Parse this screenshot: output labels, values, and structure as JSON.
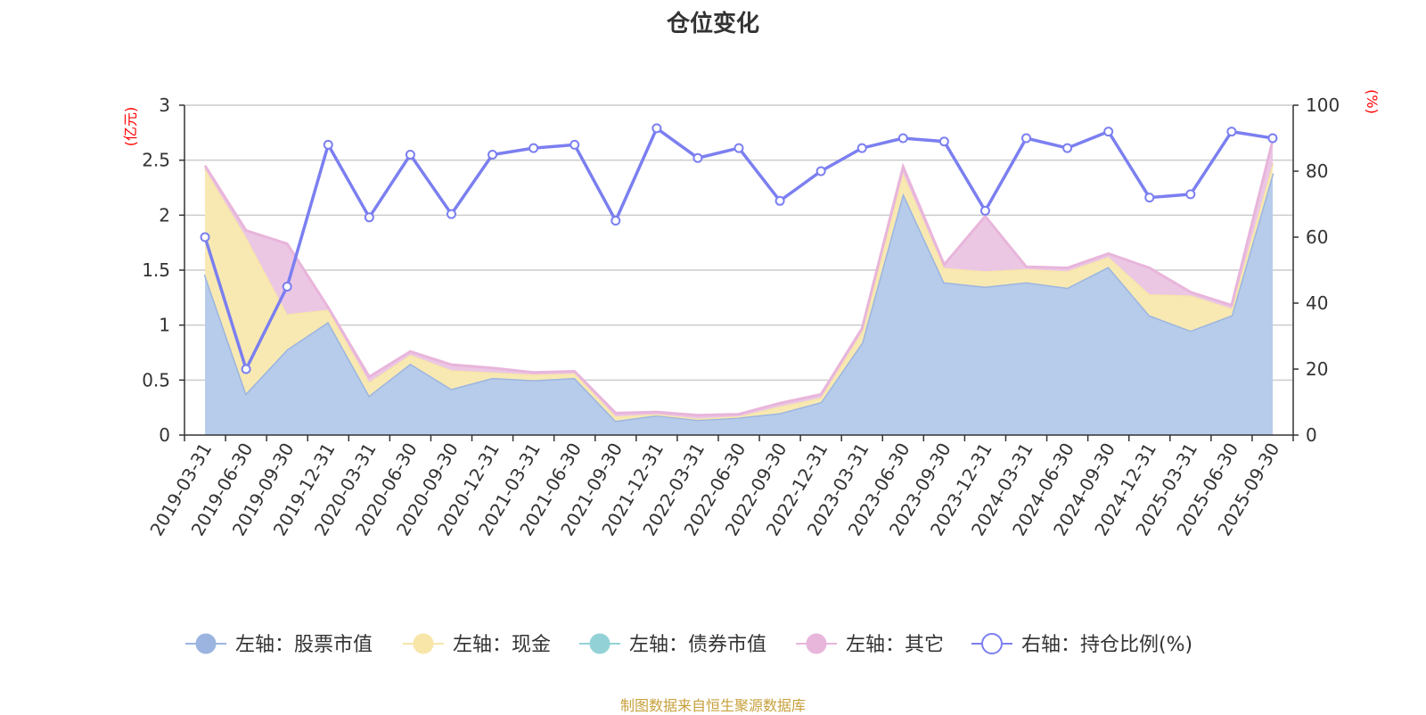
{
  "title": "仓位变化",
  "source_note": "制图数据来自恒生聚源数据库",
  "chart_data": {
    "type": "area",
    "title": "仓位变化",
    "categories": [
      "2019-03-31",
      "2019-06-30",
      "2019-09-30",
      "2019-12-31",
      "2020-03-31",
      "2020-06-30",
      "2020-09-30",
      "2020-12-31",
      "2021-03-31",
      "2021-06-30",
      "2021-09-30",
      "2021-12-31",
      "2022-03-31",
      "2022-06-30",
      "2022-09-30",
      "2022-12-31",
      "2023-03-31",
      "2023-06-30",
      "2023-09-30",
      "2023-12-31",
      "2024-03-31",
      "2024-06-30",
      "2024-09-30",
      "2024-12-31",
      "2025-03-31",
      "2025-06-30",
      "2025-09-30"
    ],
    "left_axis": {
      "unit": "(亿元)",
      "ylim": [
        0,
        3
      ],
      "ticks": [
        "0",
        "0.5",
        "1",
        "1.5",
        "2",
        "2.5",
        "3"
      ]
    },
    "right_axis": {
      "unit": "(%)",
      "ylim": [
        0,
        100
      ],
      "ticks": [
        "0",
        "20",
        "40",
        "60",
        "80",
        "100"
      ]
    },
    "grid": true,
    "legend_position": "bottom",
    "series": [
      {
        "name": "左轴：股票市值",
        "axis": "left",
        "stack": true,
        "color": "#9bb5e0",
        "fill": "#b7cbea",
        "values": [
          1.46,
          0.38,
          0.78,
          1.03,
          0.36,
          0.65,
          0.42,
          0.52,
          0.5,
          0.52,
          0.13,
          0.18,
          0.14,
          0.16,
          0.2,
          0.3,
          0.84,
          2.2,
          1.39,
          1.35,
          1.39,
          1.34,
          1.53,
          1.09,
          0.95,
          1.09,
          2.38
        ]
      },
      {
        "name": "左轴：现金",
        "axis": "left",
        "stack": true,
        "color": "#f7e6a8",
        "fill": "#f8e9b3",
        "values": [
          0.96,
          1.42,
          0.32,
          0.11,
          0.12,
          0.08,
          0.17,
          0.05,
          0.05,
          0.04,
          0.04,
          0.01,
          0.01,
          0.01,
          0.06,
          0.04,
          0.1,
          0.18,
          0.13,
          0.14,
          0.12,
          0.15,
          0.09,
          0.19,
          0.32,
          0.06,
          0.09
        ]
      },
      {
        "name": "左轴：债券市值",
        "axis": "left",
        "stack": true,
        "color": "#92d2d6",
        "fill": "#a5dadd",
        "values": [
          0,
          0,
          0,
          0,
          0,
          0,
          0,
          0,
          0,
          0,
          0,
          0,
          0,
          0,
          0,
          0,
          0,
          0,
          0,
          0,
          0,
          0,
          0,
          0,
          0,
          0,
          0
        ]
      },
      {
        "name": "左轴：其它",
        "axis": "left",
        "stack": true,
        "color": "#e8b5db",
        "fill": "#ebc7e4",
        "values": [
          0.03,
          0.06,
          0.64,
          0.02,
          0.05,
          0.03,
          0.05,
          0.04,
          0.02,
          0.02,
          0.03,
          0.02,
          0.03,
          0.02,
          0.03,
          0.03,
          0.03,
          0.06,
          0.03,
          0.5,
          0.02,
          0.03,
          0.03,
          0.24,
          0.03,
          0.03,
          0.21
        ]
      },
      {
        "name": "右轴：持仓比例(%)",
        "axis": "right",
        "stack": false,
        "color": "#7b7ff0",
        "values": [
          60,
          20,
          45,
          88,
          66,
          85,
          67,
          85,
          87,
          88,
          65,
          93,
          84,
          87,
          71,
          80,
          87,
          90,
          89,
          68,
          90,
          87,
          92,
          72,
          73,
          92,
          90
        ]
      }
    ]
  }
}
